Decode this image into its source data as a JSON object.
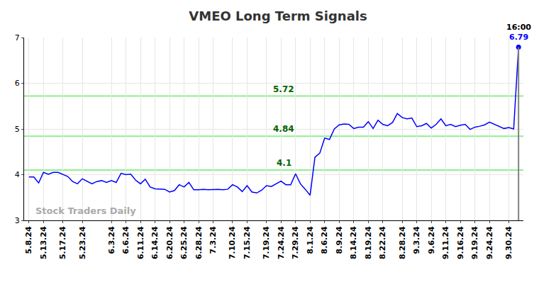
{
  "chart_data": {
    "type": "line",
    "title": "VMEO Long Term Signals",
    "categories": [
      "5.8.24",
      null,
      null,
      "5.13.24",
      null,
      null,
      null,
      "5.17.24",
      null,
      null,
      null,
      "5.23.24",
      null,
      null,
      null,
      null,
      null,
      "6.3.24",
      null,
      null,
      "6.6.24",
      null,
      null,
      "6.11.24",
      null,
      null,
      "6.14.24",
      null,
      null,
      "6.20.24",
      null,
      null,
      "6.25.24",
      null,
      null,
      "6.28.24",
      null,
      null,
      "7.3.24",
      null,
      null,
      null,
      "7.10.24",
      null,
      null,
      "7.15.24",
      null,
      null,
      null,
      "7.19.24",
      null,
      null,
      "7.24.24",
      null,
      null,
      "7.29.24",
      null,
      null,
      "8.1.24",
      null,
      null,
      "8.6.24",
      null,
      null,
      "8.9.24",
      null,
      null,
      "8.14.24",
      null,
      null,
      "8.19.24",
      null,
      null,
      "8.22.24",
      null,
      null,
      null,
      "8.28.24",
      null,
      null,
      "9.3.24",
      null,
      null,
      "9.6.24",
      null,
      null,
      "9.11.24",
      null,
      null,
      "9.16.24",
      null,
      null,
      "9.19.24",
      null,
      null,
      "9.24.24",
      null,
      null,
      null,
      "9.30.24",
      null,
      null
    ],
    "values": [
      3.95,
      3.95,
      3.82,
      4.05,
      4.01,
      4.05,
      4.05,
      4.0,
      3.96,
      3.85,
      3.8,
      3.91,
      3.86,
      3.8,
      3.85,
      3.87,
      3.83,
      3.87,
      3.83,
      4.03,
      4.0,
      4.01,
      3.88,
      3.8,
      3.9,
      3.73,
      3.69,
      3.69,
      3.68,
      3.62,
      3.65,
      3.78,
      3.73,
      3.83,
      3.67,
      3.67,
      3.68,
      3.67,
      3.68,
      3.68,
      3.67,
      3.68,
      3.78,
      3.73,
      3.63,
      3.76,
      3.62,
      3.6,
      3.66,
      3.76,
      3.74,
      3.8,
      3.86,
      3.78,
      3.78,
      4.02,
      3.8,
      3.68,
      3.55,
      4.38,
      4.47,
      4.8,
      4.77,
      5.0,
      5.09,
      5.11,
      5.1,
      5.01,
      5.04,
      5.04,
      5.16,
      5.01,
      5.19,
      5.1,
      5.07,
      5.14,
      5.34,
      5.25,
      5.22,
      5.24,
      5.05,
      5.07,
      5.12,
      5.02,
      5.1,
      5.22,
      5.07,
      5.1,
      5.05,
      5.08,
      5.1,
      4.99,
      5.04,
      5.06,
      5.09,
      5.15,
      5.1,
      5.06,
      5.01,
      5.03,
      5.0,
      6.79
    ],
    "color": "#0000ff",
    "ylim": [
      3,
      7
    ],
    "yticks": [
      3,
      4,
      5,
      6,
      7
    ],
    "grid": true,
    "signal_levels": [
      5.72,
      4.84,
      4.1
    ],
    "last_time": "16:00",
    "watermark": "Stock Traders Daily"
  }
}
